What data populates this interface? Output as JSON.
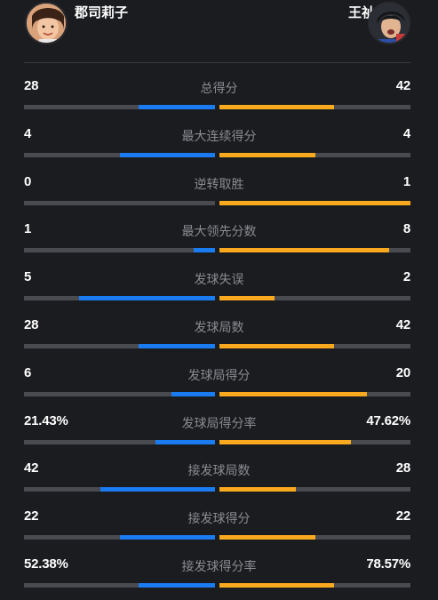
{
  "players": {
    "left": {
      "name": "郡司莉子"
    },
    "right": {
      "name": "王祉怡"
    }
  },
  "colors": {
    "left_accent": "#1a7cf0",
    "right_accent": "#f9a91e",
    "track": "#4a4b50",
    "background": "#1b1c20"
  },
  "stats": [
    {
      "label": "总得分",
      "left": "28",
      "right": "42",
      "left_fill": 0.4,
      "right_fill": 0.6
    },
    {
      "label": "最大连续得分",
      "left": "4",
      "right": "4",
      "left_fill": 0.5,
      "right_fill": 0.5
    },
    {
      "label": "逆转取胜",
      "left": "0",
      "right": "1",
      "left_fill": 0.0,
      "right_fill": 1.0
    },
    {
      "label": "最大领先分数",
      "left": "1",
      "right": "8",
      "left_fill": 0.11,
      "right_fill": 0.89
    },
    {
      "label": "发球失误",
      "left": "5",
      "right": "2",
      "left_fill": 0.71,
      "right_fill": 0.29
    },
    {
      "label": "发球局数",
      "left": "28",
      "right": "42",
      "left_fill": 0.4,
      "right_fill": 0.6
    },
    {
      "label": "发球局得分",
      "left": "6",
      "right": "20",
      "left_fill": 0.23,
      "right_fill": 0.77
    },
    {
      "label": "发球局得分率",
      "left": "21.43%",
      "right": "47.62%",
      "left_fill": 0.31,
      "right_fill": 0.69
    },
    {
      "label": "接发球局数",
      "left": "42",
      "right": "28",
      "left_fill": 0.6,
      "right_fill": 0.4
    },
    {
      "label": "接发球得分",
      "left": "22",
      "right": "22",
      "left_fill": 0.5,
      "right_fill": 0.5
    },
    {
      "label": "接发球得分率",
      "left": "52.38%",
      "right": "78.57%",
      "left_fill": 0.4,
      "right_fill": 0.6
    }
  ]
}
